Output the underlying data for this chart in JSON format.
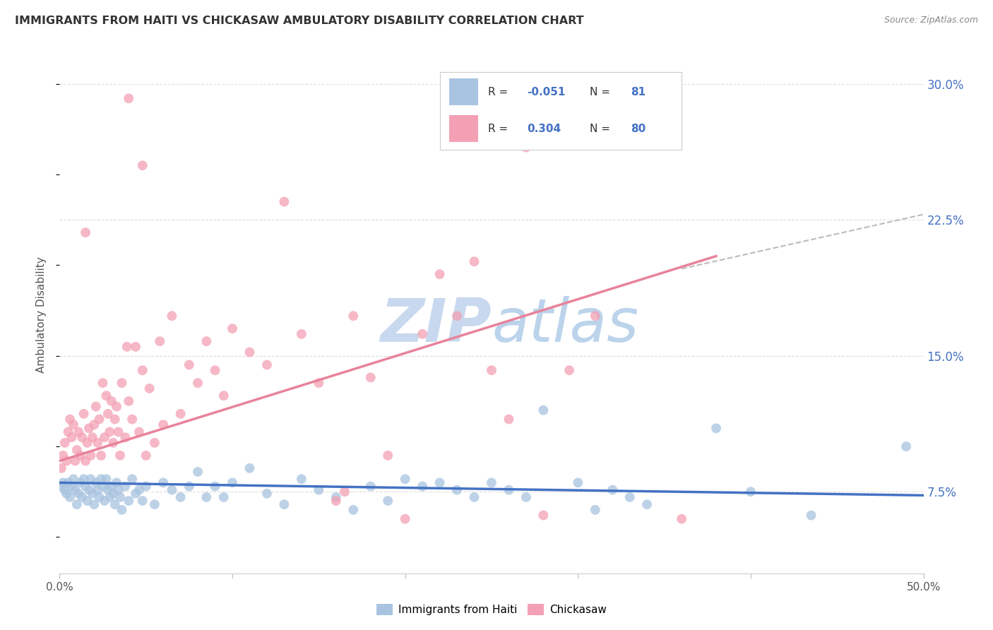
{
  "title": "IMMIGRANTS FROM HAITI VS CHICKASAW AMBULATORY DISABILITY CORRELATION CHART",
  "source": "Source: ZipAtlas.com",
  "ylabel": "Ambulatory Disability",
  "yticks_labels": [
    "7.5%",
    "15.0%",
    "22.5%",
    "30.0%"
  ],
  "ytick_vals": [
    0.075,
    0.15,
    0.225,
    0.3
  ],
  "xlim": [
    0.0,
    0.5
  ],
  "ylim": [
    0.03,
    0.315
  ],
  "legend_blue_label": "Immigrants from Haiti",
  "legend_pink_label": "Chickasaw",
  "blue_color": "#a8c4e0",
  "pink_color": "#f4a0b4",
  "blue_line_color": "#4472c4",
  "pink_line_color": "#e8839a",
  "dashed_line_color": "#bbbbbb",
  "background_color": "#ffffff",
  "grid_color": "#dddddd",
  "blue_scatter": [
    [
      0.001,
      0.078
    ],
    [
      0.002,
      0.08
    ],
    [
      0.003,
      0.076
    ],
    [
      0.004,
      0.074
    ],
    [
      0.005,
      0.08
    ],
    [
      0.006,
      0.072
    ],
    [
      0.007,
      0.078
    ],
    [
      0.008,
      0.082
    ],
    [
      0.009,
      0.076
    ],
    [
      0.01,
      0.068
    ],
    [
      0.011,
      0.074
    ],
    [
      0.012,
      0.08
    ],
    [
      0.013,
      0.072
    ],
    [
      0.014,
      0.082
    ],
    [
      0.015,
      0.078
    ],
    [
      0.016,
      0.07
    ],
    [
      0.017,
      0.076
    ],
    [
      0.018,
      0.082
    ],
    [
      0.019,
      0.074
    ],
    [
      0.02,
      0.068
    ],
    [
      0.021,
      0.08
    ],
    [
      0.022,
      0.076
    ],
    [
      0.023,
      0.072
    ],
    [
      0.024,
      0.082
    ],
    [
      0.025,
      0.078
    ],
    [
      0.026,
      0.07
    ],
    [
      0.027,
      0.082
    ],
    [
      0.028,
      0.076
    ],
    [
      0.029,
      0.072
    ],
    [
      0.03,
      0.078
    ],
    [
      0.031,
      0.074
    ],
    [
      0.032,
      0.068
    ],
    [
      0.033,
      0.08
    ],
    [
      0.034,
      0.076
    ],
    [
      0.035,
      0.072
    ],
    [
      0.036,
      0.065
    ],
    [
      0.038,
      0.078
    ],
    [
      0.04,
      0.07
    ],
    [
      0.042,
      0.082
    ],
    [
      0.044,
      0.074
    ],
    [
      0.046,
      0.076
    ],
    [
      0.048,
      0.07
    ],
    [
      0.05,
      0.078
    ],
    [
      0.055,
      0.068
    ],
    [
      0.06,
      0.08
    ],
    [
      0.065,
      0.076
    ],
    [
      0.07,
      0.072
    ],
    [
      0.075,
      0.078
    ],
    [
      0.08,
      0.086
    ],
    [
      0.085,
      0.072
    ],
    [
      0.09,
      0.078
    ],
    [
      0.095,
      0.072
    ],
    [
      0.1,
      0.08
    ],
    [
      0.11,
      0.088
    ],
    [
      0.12,
      0.074
    ],
    [
      0.13,
      0.068
    ],
    [
      0.14,
      0.082
    ],
    [
      0.15,
      0.076
    ],
    [
      0.16,
      0.072
    ],
    [
      0.17,
      0.065
    ],
    [
      0.18,
      0.078
    ],
    [
      0.19,
      0.07
    ],
    [
      0.2,
      0.082
    ],
    [
      0.21,
      0.078
    ],
    [
      0.22,
      0.08
    ],
    [
      0.23,
      0.076
    ],
    [
      0.24,
      0.072
    ],
    [
      0.25,
      0.08
    ],
    [
      0.26,
      0.076
    ],
    [
      0.27,
      0.072
    ],
    [
      0.28,
      0.12
    ],
    [
      0.3,
      0.08
    ],
    [
      0.31,
      0.065
    ],
    [
      0.32,
      0.076
    ],
    [
      0.33,
      0.072
    ],
    [
      0.34,
      0.068
    ],
    [
      0.38,
      0.11
    ],
    [
      0.4,
      0.075
    ],
    [
      0.435,
      0.062
    ],
    [
      0.49,
      0.1
    ]
  ],
  "pink_scatter": [
    [
      0.001,
      0.088
    ],
    [
      0.002,
      0.095
    ],
    [
      0.003,
      0.102
    ],
    [
      0.004,
      0.092
    ],
    [
      0.005,
      0.108
    ],
    [
      0.006,
      0.115
    ],
    [
      0.007,
      0.105
    ],
    [
      0.008,
      0.112
    ],
    [
      0.009,
      0.092
    ],
    [
      0.01,
      0.098
    ],
    [
      0.011,
      0.108
    ],
    [
      0.012,
      0.095
    ],
    [
      0.013,
      0.105
    ],
    [
      0.014,
      0.118
    ],
    [
      0.015,
      0.092
    ],
    [
      0.016,
      0.102
    ],
    [
      0.017,
      0.11
    ],
    [
      0.018,
      0.095
    ],
    [
      0.019,
      0.105
    ],
    [
      0.02,
      0.112
    ],
    [
      0.021,
      0.122
    ],
    [
      0.022,
      0.102
    ],
    [
      0.023,
      0.115
    ],
    [
      0.024,
      0.095
    ],
    [
      0.025,
      0.135
    ],
    [
      0.026,
      0.105
    ],
    [
      0.027,
      0.128
    ],
    [
      0.028,
      0.118
    ],
    [
      0.029,
      0.108
    ],
    [
      0.03,
      0.125
    ],
    [
      0.031,
      0.102
    ],
    [
      0.032,
      0.115
    ],
    [
      0.033,
      0.122
    ],
    [
      0.034,
      0.108
    ],
    [
      0.035,
      0.095
    ],
    [
      0.036,
      0.135
    ],
    [
      0.038,
      0.105
    ],
    [
      0.039,
      0.155
    ],
    [
      0.04,
      0.125
    ],
    [
      0.042,
      0.115
    ],
    [
      0.044,
      0.155
    ],
    [
      0.046,
      0.108
    ],
    [
      0.048,
      0.142
    ],
    [
      0.05,
      0.095
    ],
    [
      0.052,
      0.132
    ],
    [
      0.055,
      0.102
    ],
    [
      0.058,
      0.158
    ],
    [
      0.06,
      0.112
    ],
    [
      0.065,
      0.172
    ],
    [
      0.07,
      0.118
    ],
    [
      0.075,
      0.145
    ],
    [
      0.08,
      0.135
    ],
    [
      0.085,
      0.158
    ],
    [
      0.09,
      0.142
    ],
    [
      0.095,
      0.128
    ],
    [
      0.1,
      0.165
    ],
    [
      0.11,
      0.152
    ],
    [
      0.12,
      0.145
    ],
    [
      0.13,
      0.235
    ],
    [
      0.14,
      0.162
    ],
    [
      0.15,
      0.135
    ],
    [
      0.16,
      0.07
    ],
    [
      0.165,
      0.075
    ],
    [
      0.17,
      0.172
    ],
    [
      0.18,
      0.138
    ],
    [
      0.19,
      0.095
    ],
    [
      0.2,
      0.06
    ],
    [
      0.21,
      0.162
    ],
    [
      0.22,
      0.195
    ],
    [
      0.23,
      0.172
    ],
    [
      0.24,
      0.202
    ],
    [
      0.25,
      0.142
    ],
    [
      0.26,
      0.115
    ],
    [
      0.27,
      0.265
    ],
    [
      0.28,
      0.062
    ],
    [
      0.295,
      0.142
    ],
    [
      0.31,
      0.172
    ],
    [
      0.36,
      0.06
    ],
    [
      0.04,
      0.292
    ],
    [
      0.048,
      0.255
    ],
    [
      0.015,
      0.218
    ]
  ],
  "blue_line_x": [
    0.0,
    0.5
  ],
  "blue_line_y": [
    0.08,
    0.073
  ],
  "pink_line_x": [
    0.0,
    0.38
  ],
  "pink_line_y": [
    0.092,
    0.205
  ],
  "dashed_line_x": [
    0.36,
    0.5
  ],
  "dashed_line_y": [
    0.198,
    0.228
  ]
}
